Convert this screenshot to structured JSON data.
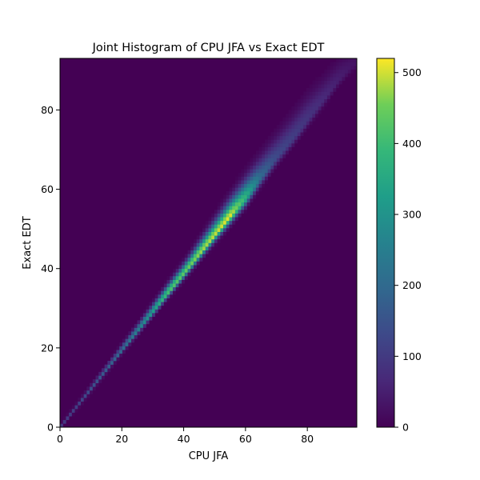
{
  "chart_data": {
    "type": "heatmap",
    "title": "Joint Histogram of CPU JFA vs Exact EDT",
    "xlabel": "CPU JFA",
    "ylabel": "Exact EDT",
    "xlim": [
      0,
      96
    ],
    "ylim": [
      0,
      93
    ],
    "x_ticks": [
      "0",
      "20",
      "40",
      "60",
      "80"
    ],
    "y_ticks": [
      "0",
      "20",
      "40",
      "60",
      "80"
    ],
    "bins": [
      100,
      100
    ],
    "colormap": "viridis",
    "colorbar": {
      "vmin": 0,
      "vmax": 520,
      "ticks": [
        "0",
        "100",
        "200",
        "300",
        "400",
        "500"
      ]
    },
    "background_color": "#440154",
    "density_profile": [
      {
        "x": 0,
        "y": 0,
        "count": 90
      },
      {
        "x": 5,
        "y": 4.7,
        "count": 110
      },
      {
        "x": 10,
        "y": 9.6,
        "count": 140
      },
      {
        "x": 15,
        "y": 14.5,
        "count": 170
      },
      {
        "x": 20,
        "y": 19.5,
        "count": 200
      },
      {
        "x": 25,
        "y": 24.3,
        "count": 250
      },
      {
        "x": 30,
        "y": 29.2,
        "count": 320
      },
      {
        "x": 35,
        "y": 34.1,
        "count": 420
      },
      {
        "x": 40,
        "y": 38.8,
        "count": 430
      },
      {
        "x": 45,
        "y": 43.7,
        "count": 470
      },
      {
        "x": 50,
        "y": 48.5,
        "count": 490
      },
      {
        "x": 55,
        "y": 53.2,
        "count": 510
      },
      {
        "x": 60,
        "y": 57.8,
        "count": 380
      },
      {
        "x": 65,
        "y": 63.0,
        "count": 200
      },
      {
        "x": 70,
        "y": 68.0,
        "count": 130
      },
      {
        "x": 75,
        "y": 72.5,
        "count": 110
      },
      {
        "x": 80,
        "y": 77.5,
        "count": 90
      },
      {
        "x": 85,
        "y": 82.3,
        "count": 70
      },
      {
        "x": 90,
        "y": 87.5,
        "count": 50
      },
      {
        "x": 95,
        "y": 91.5,
        "count": 30
      }
    ],
    "spread_profile": [
      {
        "x": 0,
        "below": 0.3,
        "above": 0.4
      },
      {
        "x": 20,
        "below": 0.5,
        "above": 0.8
      },
      {
        "x": 40,
        "below": 0.8,
        "above": 1.4
      },
      {
        "x": 60,
        "below": 1.2,
        "above": 2.8
      },
      {
        "x": 80,
        "below": 1.0,
        "above": 3.5
      },
      {
        "x": 96,
        "below": 0.8,
        "above": 2.5
      }
    ]
  }
}
